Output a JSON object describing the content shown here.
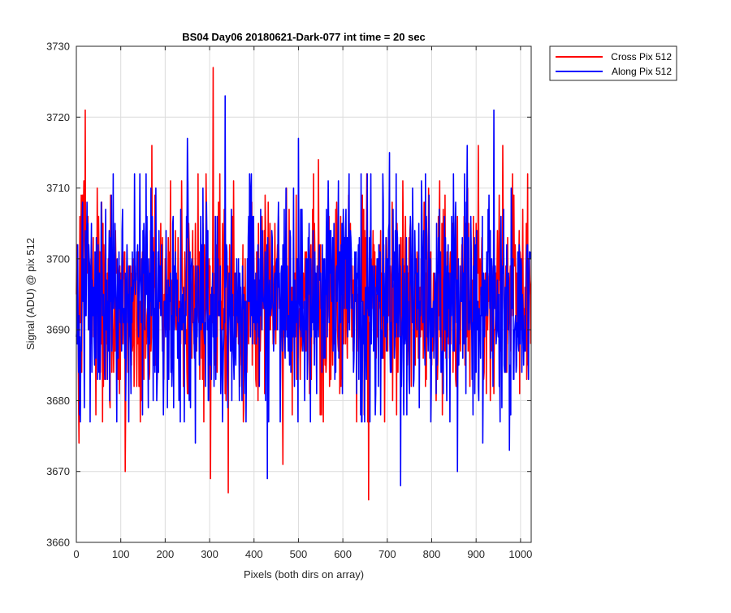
{
  "chart_data": {
    "type": "line",
    "title": "BS04 Day06 20180621-Dark-077 int time = 20 sec",
    "xlabel": "Pixels (both dirs on array)",
    "ylabel": "Signal (ADU) @ pix 512",
    "xlim": [
      0,
      1024
    ],
    "ylim": [
      3660,
      3730
    ],
    "xticks": [
      0,
      100,
      200,
      300,
      400,
      500,
      600,
      700,
      800,
      900,
      1000
    ],
    "yticks": [
      3660,
      3670,
      3680,
      3690,
      3700,
      3710,
      3720,
      3730
    ],
    "grid": true,
    "legend_position": "outside-top-right",
    "noise_model": {
      "mean": 3694,
      "sigma": 7.5,
      "points": 1024
    },
    "series": [
      {
        "name": "Cross Pix 512",
        "color": "#ff0000",
        "peaks": [
          {
            "x": 20,
            "y": 3721
          },
          {
            "x": 308,
            "y": 3727
          },
          {
            "x": 170,
            "y": 3716
          },
          {
            "x": 545,
            "y": 3714
          },
          {
            "x": 905,
            "y": 3716
          },
          {
            "x": 960,
            "y": 3716
          }
        ],
        "troughs": [
          {
            "x": 6,
            "y": 3674
          },
          {
            "x": 110,
            "y": 3670
          },
          {
            "x": 302,
            "y": 3669
          },
          {
            "x": 342,
            "y": 3667
          },
          {
            "x": 658,
            "y": 3666
          },
          {
            "x": 465,
            "y": 3671
          }
        ]
      },
      {
        "name": "Along Pix 512",
        "color": "#0000ff",
        "peaks": [
          {
            "x": 335,
            "y": 3723
          },
          {
            "x": 940,
            "y": 3721
          },
          {
            "x": 250,
            "y": 3717
          },
          {
            "x": 500,
            "y": 3717
          },
          {
            "x": 705,
            "y": 3715
          },
          {
            "x": 880,
            "y": 3716
          }
        ],
        "troughs": [
          {
            "x": 430,
            "y": 3669
          },
          {
            "x": 730,
            "y": 3668
          },
          {
            "x": 858,
            "y": 3670
          },
          {
            "x": 975,
            "y": 3673
          },
          {
            "x": 268,
            "y": 3674
          },
          {
            "x": 915,
            "y": 3674
          }
        ]
      }
    ]
  }
}
